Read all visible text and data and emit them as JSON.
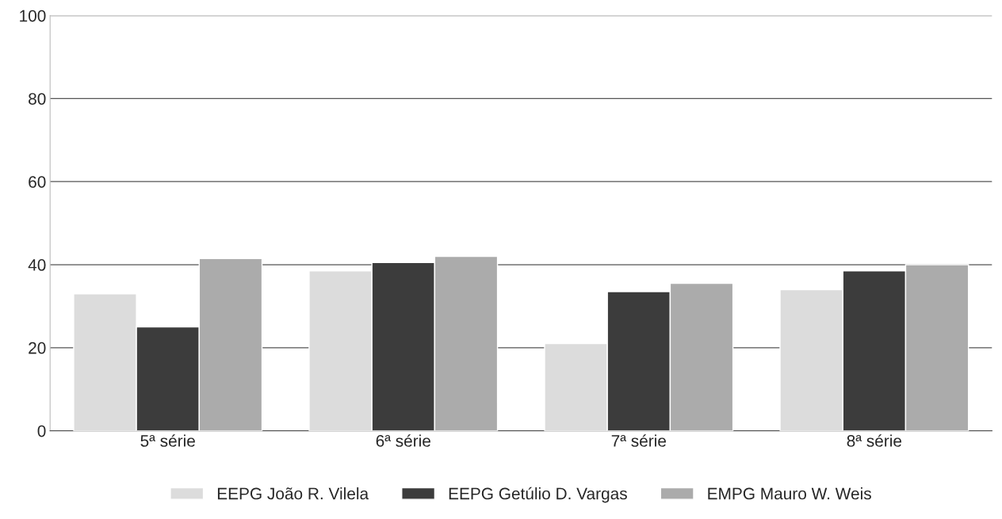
{
  "chart_data": {
    "type": "bar",
    "categories": [
      "5ª série",
      "6ª série",
      "7ª série",
      "8ª série"
    ],
    "series": [
      {
        "name": "EEPG João R. Vilela",
        "color": "#dcdcdc",
        "values": [
          33,
          38.5,
          21,
          34
        ]
      },
      {
        "name": "EEPG Getúlio D. Vargas",
        "color": "#3c3c3c",
        "values": [
          25,
          40.5,
          33.5,
          38.5
        ]
      },
      {
        "name": "EMPG Mauro W. Weis",
        "color": "#ababab",
        "values": [
          41.5,
          42,
          35.5,
          40
        ]
      }
    ],
    "ylim": [
      0,
      100
    ],
    "yticks": [
      0,
      20,
      40,
      60,
      80,
      100
    ],
    "grid": "y",
    "legend": "bottom"
  }
}
